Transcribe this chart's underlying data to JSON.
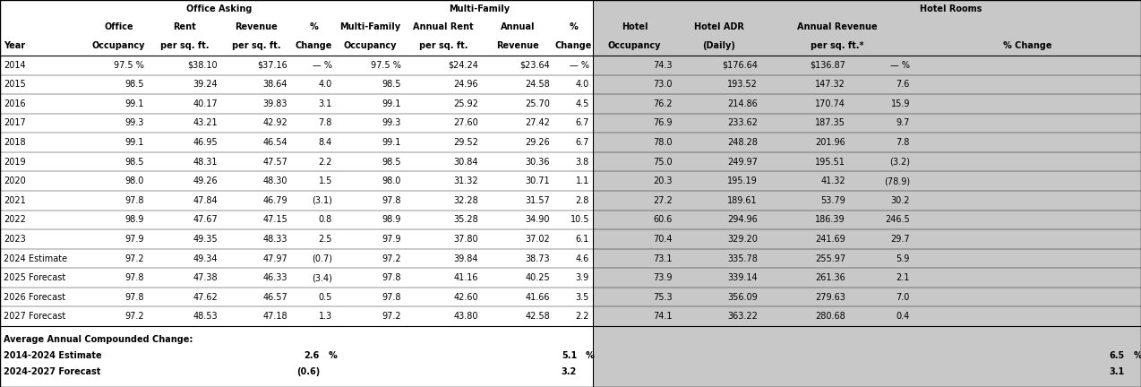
{
  "rows": [
    [
      "2014",
      "97.5 %",
      "$38.10",
      "$37.16",
      "— %",
      "97.5 %",
      "$24.24",
      "$23.64",
      "— %",
      "74.3",
      "$176.64",
      "$136.87",
      "— %"
    ],
    [
      "2015",
      "98.5",
      "39.24",
      "38.64",
      "4.0",
      "98.5",
      "24.96",
      "24.58",
      "4.0",
      "73.0",
      "193.52",
      "147.32",
      "7.6"
    ],
    [
      "2016",
      "99.1",
      "40.17",
      "39.83",
      "3.1",
      "99.1",
      "25.92",
      "25.70",
      "4.5",
      "76.2",
      "214.86",
      "170.74",
      "15.9"
    ],
    [
      "2017",
      "99.3",
      "43.21",
      "42.92",
      "7.8",
      "99.3",
      "27.60",
      "27.42",
      "6.7",
      "76.9",
      "233.62",
      "187.35",
      "9.7"
    ],
    [
      "2018",
      "99.1",
      "46.95",
      "46.54",
      "8.4",
      "99.1",
      "29.52",
      "29.26",
      "6.7",
      "78.0",
      "248.28",
      "201.96",
      "7.8"
    ],
    [
      "2019",
      "98.5",
      "48.31",
      "47.57",
      "2.2",
      "98.5",
      "30.84",
      "30.36",
      "3.8",
      "75.0",
      "249.97",
      "195.51",
      "(3.2)"
    ],
    [
      "2020",
      "98.0",
      "49.26",
      "48.30",
      "1.5",
      "98.0",
      "31.32",
      "30.71",
      "1.1",
      "20.3",
      "195.19",
      "41.32",
      "(78.9)"
    ],
    [
      "2021",
      "97.8",
      "47.84",
      "46.79",
      "(3.1)",
      "97.8",
      "32.28",
      "31.57",
      "2.8",
      "27.2",
      "189.61",
      "53.79",
      "30.2"
    ],
    [
      "2022",
      "98.9",
      "47.67",
      "47.15",
      "0.8",
      "98.9",
      "35.28",
      "34.90",
      "10.5",
      "60.6",
      "294.96",
      "186.39",
      "246.5"
    ],
    [
      "2023",
      "97.9",
      "49.35",
      "48.33",
      "2.5",
      "97.9",
      "37.80",
      "37.02",
      "6.1",
      "70.4",
      "329.20",
      "241.69",
      "29.7"
    ],
    [
      "2024 Estimate",
      "97.2",
      "49.34",
      "47.97",
      "(0.7)",
      "97.2",
      "39.84",
      "38.73",
      "4.6",
      "73.1",
      "335.78",
      "255.97",
      "5.9"
    ],
    [
      "2025 Forecast",
      "97.8",
      "47.38",
      "46.33",
      "(3.4)",
      "97.8",
      "41.16",
      "40.25",
      "3.9",
      "73.9",
      "339.14",
      "261.36",
      "2.1"
    ],
    [
      "2026 Forecast",
      "97.8",
      "47.62",
      "46.57",
      "0.5",
      "97.8",
      "42.60",
      "41.66",
      "3.5",
      "75.3",
      "356.09",
      "279.63",
      "7.0"
    ],
    [
      "2027 Forecast",
      "97.2",
      "48.53",
      "47.18",
      "1.3",
      "97.2",
      "43.80",
      "42.58",
      "2.2",
      "74.1",
      "363.22",
      "280.68",
      "0.4"
    ]
  ],
  "footer_label0": "Average Annual Compounded Change:",
  "footer_label1": "2014-2024 Estimate",
  "footer_label2": "2024-2027 Forecast",
  "footer_off1": "2.6",
  "footer_off2": "(0.6)",
  "footer_mf1": "5.1",
  "footer_mf2": "3.2",
  "footer_hot1": "6.5",
  "footer_hot2": "3.1",
  "hotel_bg": "#c8c8c8",
  "white_bg": "#ffffff",
  "fs": 7.0
}
